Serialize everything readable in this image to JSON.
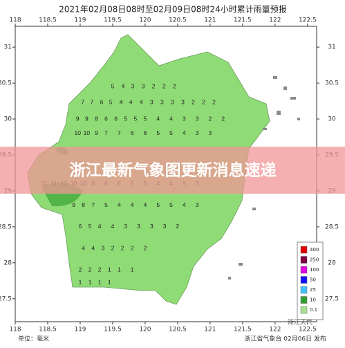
{
  "map": {
    "title": "2021年02月08日08时至02月09日08时24小时累计雨量预报",
    "xlim": [
      118,
      122.64
    ],
    "ylim": [
      27.18,
      31.29
    ],
    "xticks": [
      118,
      118.5,
      119,
      119.5,
      120,
      120.5,
      121,
      121.5,
      122,
      122.5
    ],
    "yticks": [
      27.5,
      28,
      28.5,
      29,
      29.5,
      30,
      30.5,
      31
    ],
    "station_rows": [
      {
        "lat": 30.45,
        "lons": [
          119.5,
          119.66,
          119.81,
          119.97,
          120.13,
          120.29,
          120.45
        ],
        "values": [
          5,
          4,
          3,
          3,
          2,
          2,
          2
        ]
      },
      {
        "lat": 30.23,
        "lons": [
          119.04,
          119.18,
          119.33,
          119.47,
          119.63,
          119.78,
          119.94,
          120.1,
          120.26,
          120.42,
          120.58,
          120.74,
          120.9,
          121.06
        ],
        "values": [
          7,
          7,
          6,
          5,
          4,
          4,
          4,
          3,
          3,
          3,
          3,
          2,
          2,
          2
        ]
      },
      {
        "lat": 30.0,
        "lons": [
          118.96,
          119.1,
          119.25,
          119.4,
          119.55,
          119.7,
          119.85,
          120.0,
          120.2,
          120.4,
          120.6,
          120.8,
          121.0,
          121.2
        ],
        "values": [
          9,
          9,
          8,
          6,
          6,
          5,
          5,
          5,
          4,
          4,
          3,
          3,
          2,
          2
        ]
      },
      {
        "lat": 29.8,
        "lons": [
          118.96,
          119.1,
          119.25,
          119.4,
          119.6,
          119.8,
          120.0,
          120.2,
          120.4,
          120.6,
          120.8,
          121.0
        ],
        "values": [
          10,
          10,
          9,
          7,
          7,
          6,
          6,
          5,
          5,
          4,
          3,
          3
        ]
      },
      {
        "lat": 29.1,
        "lons": [
          118.45,
          118.6,
          118.75,
          118.9,
          119.05,
          119.2,
          119.4,
          119.6,
          119.8,
          120.0,
          120.2,
          120.4,
          120.6,
          120.8
        ],
        "values": [
          11,
          11,
          12,
          10,
          10,
          8,
          6,
          6,
          5,
          5,
          4,
          4,
          5,
          3
        ]
      },
      {
        "lat": 28.8,
        "lons": [
          118.9,
          119.05,
          119.2,
          119.4,
          119.6,
          119.8,
          120.0,
          120.2,
          120.4,
          120.6,
          120.8
        ],
        "values": [
          9,
          8,
          7,
          5,
          4,
          4,
          4,
          5,
          5,
          4,
          3
        ]
      },
      {
        "lat": 28.5,
        "lons": [
          119.0,
          119.15,
          119.3,
          119.5,
          119.7,
          119.9,
          120.1,
          120.3,
          120.5
        ],
        "values": [
          6,
          5,
          4,
          4,
          3,
          3,
          3,
          3,
          2
        ]
      },
      {
        "lat": 28.2,
        "lons": [
          119.05,
          119.2,
          119.35,
          119.5,
          119.65,
          119.8,
          120.0
        ],
        "values": [
          4,
          4,
          3,
          2,
          2,
          2,
          2
        ]
      },
      {
        "lat": 27.9,
        "lons": [
          119.0,
          119.15,
          119.3,
          119.45,
          119.6,
          119.8
        ],
        "values": [
          2,
          2,
          2,
          1,
          1,
          1
        ]
      },
      {
        "lat": 27.72,
        "lons": [
          119.0,
          119.15,
          119.3,
          119.45
        ],
        "values": [
          1,
          1,
          1,
          1
        ]
      }
    ],
    "legend": [
      {
        "label": "400",
        "color": "#e00000"
      },
      {
        "label": "250",
        "color": "#800040"
      },
      {
        "label": "100",
        "color": "#e000e0"
      },
      {
        "label": "50",
        "color": "#1010ff"
      },
      {
        "label": "25",
        "color": "#40c0ff"
      },
      {
        "label": "10",
        "color": "#30a030"
      },
      {
        "label": "0.1",
        "color": "#a8e090"
      }
    ],
    "unit": "单位：毫米",
    "issuer": "浙江省气象台 02月06日 发布",
    "watermark": "浙江天气"
  },
  "banner": "浙江最新气象图更新消息速递"
}
